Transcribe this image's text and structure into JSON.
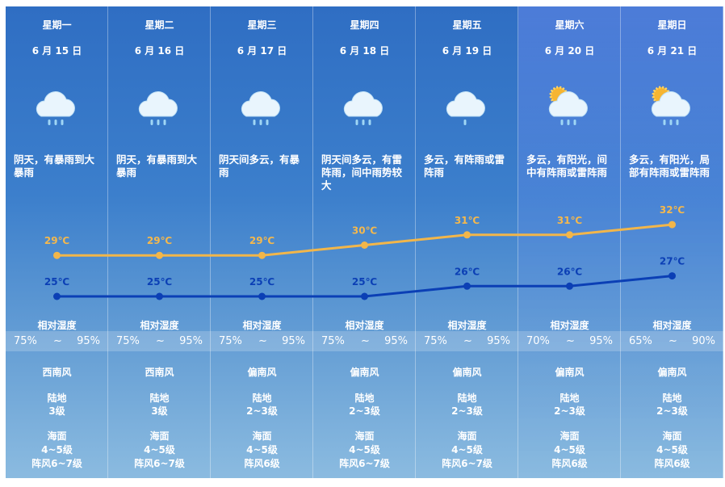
{
  "days": [
    {
      "weekday": "星期一",
      "date": "6 月 15 日",
      "description": "阴天，有暴雨到大暴雨",
      "high": {
        "value": 29,
        "label": "29℃"
      },
      "low": {
        "value": 25,
        "label": "25℃"
      },
      "humidity_label": "相对湿度",
      "humidity": {
        "min": "75%",
        "tilde": "~",
        "max": "95%"
      },
      "wind_direction": "西南风",
      "land_label": "陆地",
      "land_level": "3级",
      "sea_label": "海面",
      "sea_level": "4~5级",
      "gust": "阵风6~7级"
    },
    {
      "weekday": "星期二",
      "date": "6 月 16 日",
      "description": "阴天，有暴雨到大暴雨",
      "high": {
        "value": 29,
        "label": "29℃"
      },
      "low": {
        "value": 25,
        "label": "25℃"
      },
      "humidity_label": "相对湿度",
      "humidity": {
        "min": "75%",
        "tilde": "~",
        "max": "95%"
      },
      "wind_direction": "西南风",
      "land_label": "陆地",
      "land_level": "3级",
      "sea_label": "海面",
      "sea_level": "4~5级",
      "gust": "阵风6~7级"
    },
    {
      "weekday": "星期三",
      "date": "6 月 17 日",
      "description": "阴天间多云，有暴雨",
      "high": {
        "value": 29,
        "label": "29℃"
      },
      "low": {
        "value": 25,
        "label": "25℃"
      },
      "humidity_label": "相对湿度",
      "humidity": {
        "min": "75%",
        "tilde": "~",
        "max": "95%"
      },
      "wind_direction": "偏南风",
      "land_label": "陆地",
      "land_level": "2~3级",
      "sea_label": "海面",
      "sea_level": "4~5级",
      "gust": "阵风6级"
    },
    {
      "weekday": "星期四",
      "date": "6 月 18 日",
      "description": "阴天间多云，有雷阵雨，间中雨势较大",
      "high": {
        "value": 30,
        "label": "30℃"
      },
      "low": {
        "value": 25,
        "label": "25℃"
      },
      "humidity_label": "相对湿度",
      "humidity": {
        "min": "75%",
        "tilde": "~",
        "max": "95%"
      },
      "wind_direction": "偏南风",
      "land_label": "陆地",
      "land_level": "2~3级",
      "sea_label": "海面",
      "sea_level": "4~5级",
      "gust": "阵风6~7级"
    },
    {
      "weekday": "星期五",
      "date": "6 月 19 日",
      "description": "多云，有阵雨或雷阵雨",
      "high": {
        "value": 31,
        "label": "31℃"
      },
      "low": {
        "value": 26,
        "label": "26℃"
      },
      "humidity_label": "相对湿度",
      "humidity": {
        "min": "75%",
        "tilde": "~",
        "max": "95%"
      },
      "wind_direction": "偏南风",
      "land_label": "陆地",
      "land_level": "2~3级",
      "sea_label": "海面",
      "sea_level": "4~5级",
      "gust": "阵风6~7级"
    },
    {
      "weekday": "星期六",
      "date": "6 月 20 日",
      "description": "多云，有阳光，间中有阵雨或雷阵雨",
      "high": {
        "value": 31,
        "label": "31℃"
      },
      "low": {
        "value": 26,
        "label": "26℃"
      },
      "humidity_label": "相对湿度",
      "humidity": {
        "min": "70%",
        "tilde": "~",
        "max": "95%"
      },
      "wind_direction": "偏南风",
      "land_label": "陆地",
      "land_level": "2~3级",
      "sea_label": "海面",
      "sea_level": "4~5级",
      "gust": "阵风6级"
    },
    {
      "weekday": "星期日",
      "date": "6 月 21 日",
      "description": "多云，有阳光，局部有阵雨或雷阵雨",
      "high": {
        "value": 32,
        "label": "32℃"
      },
      "low": {
        "value": 27,
        "label": "27℃"
      },
      "humidity_label": "相对湿度",
      "humidity": {
        "min": "65%",
        "tilde": "~",
        "max": "90%"
      },
      "wind_direction": "偏南风",
      "land_label": "陆地",
      "land_level": "2~3级",
      "sea_label": "海面",
      "sea_level": "4~5级",
      "gust": "阵风6级"
    }
  ]
}
